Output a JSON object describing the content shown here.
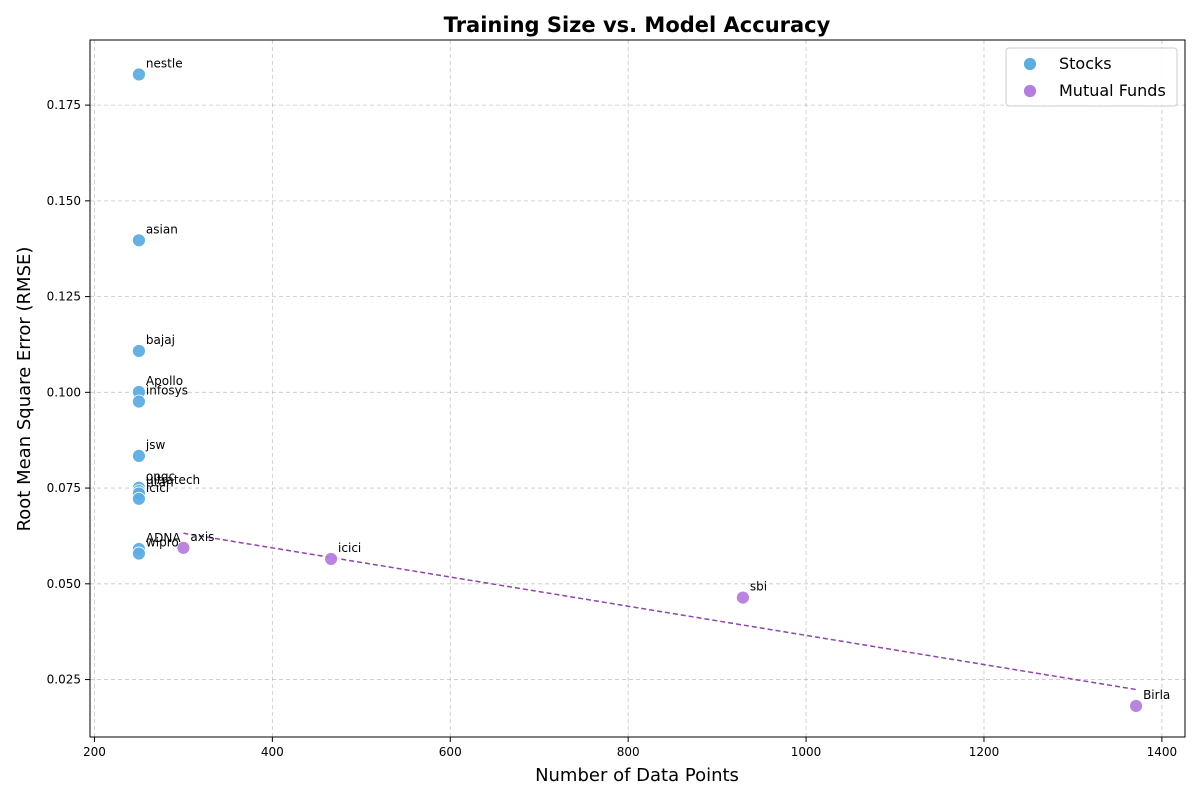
{
  "chart_data": {
    "type": "scatter",
    "title": "Training Size vs. Model Accuracy",
    "xlabel": "Number of Data Points",
    "ylabel": "Root Mean Square Error (RMSE)",
    "xlim": [
      195,
      1426
    ],
    "ylim": [
      0.01,
      0.192
    ],
    "xticks": [
      200,
      400,
      600,
      800,
      1000,
      1200,
      1400
    ],
    "yticks": [
      0.025,
      0.05,
      0.075,
      0.1,
      0.125,
      0.15,
      0.175
    ],
    "ytick_labels": [
      "0.025",
      "0.050",
      "0.075",
      "0.100",
      "0.125",
      "0.150",
      "0.175"
    ],
    "grid": true,
    "legend_position": "top-right",
    "series": [
      {
        "name": "Stocks",
        "color": "#5DADE2",
        "points": [
          {
            "label": "nestle",
            "x": 250,
            "y": 0.183
          },
          {
            "label": "asian",
            "x": 250,
            "y": 0.1397
          },
          {
            "label": "bajaj",
            "x": 250,
            "y": 0.1108
          },
          {
            "label": "Apollo",
            "x": 250,
            "y": 0.1001
          },
          {
            "label": "infosys",
            "x": 250,
            "y": 0.0976
          },
          {
            "label": "jsw",
            "x": 250,
            "y": 0.0834
          },
          {
            "label": "ongc",
            "x": 250,
            "y": 0.0751
          },
          {
            "label": "ultratech",
            "x": 250,
            "y": 0.0742
          },
          {
            "label": "titan",
            "x": 250,
            "y": 0.0736
          },
          {
            "label": "icici",
            "x": 250,
            "y": 0.0722
          },
          {
            "label": "ADNA",
            "x": 250,
            "y": 0.0591
          },
          {
            "label": "wipro",
            "x": 250,
            "y": 0.0579
          }
        ]
      },
      {
        "name": "Mutual Funds",
        "color": "#B57EDC",
        "points": [
          {
            "label": "axis",
            "x": 300,
            "y": 0.0594
          },
          {
            "label": "icici",
            "x": 466,
            "y": 0.0565
          },
          {
            "label": "sbi",
            "x": 929,
            "y": 0.0464
          },
          {
            "label": "Birla",
            "x": 1371,
            "y": 0.0181
          }
        ],
        "trendline": {
          "color": "#8E44AD",
          "style": "dashed",
          "from": {
            "x": 300,
            "y": 0.0632
          },
          "to": {
            "x": 1371,
            "y": 0.0224
          }
        }
      }
    ]
  }
}
